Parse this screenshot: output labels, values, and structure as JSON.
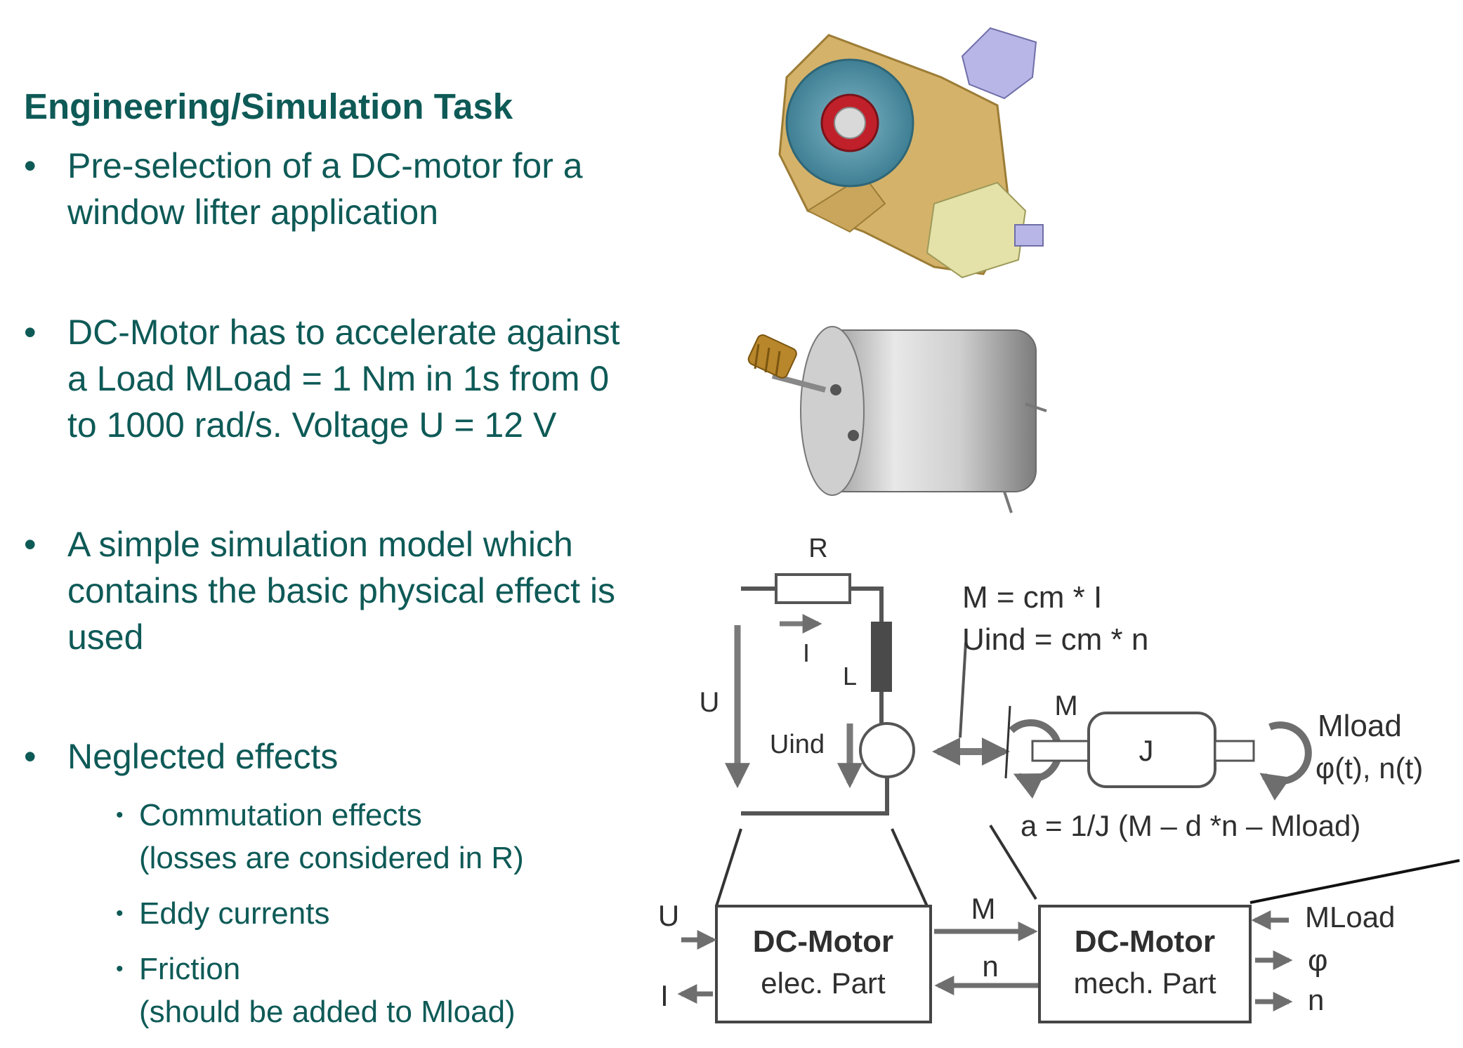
{
  "title": "Engineering/Simulation Task",
  "bullets": [
    {
      "lines": [
        "Pre-selection of a DC-motor for a",
        "window lifter application"
      ]
    },
    {
      "lines": [
        "DC-Motor has to accelerate against",
        "a Load MLoad = 1 Nm in 1s from 0",
        "to 1000 rad/s. Voltage U = 12 V"
      ]
    },
    {
      "lines": [
        "A simple simulation model which",
        "contains the basic physical effect is",
        "used"
      ]
    },
    {
      "lines": [
        "Neglected effects"
      ]
    }
  ],
  "bullet_symbol": "•",
  "subbullets": [
    {
      "lines": [
        "Commutation effects",
        "(losses are considered in R)"
      ]
    },
    {
      "lines": [
        "Eddy currents"
      ]
    },
    {
      "lines": [
        "Friction",
        "(should be added to Mload)"
      ]
    }
  ],
  "circuit": {
    "R": "R",
    "I": "I",
    "L": "L",
    "U": "U",
    "Uind": "Uind",
    "eq1": "M = cm * I",
    "eq2": "Uind = cm * n",
    "M": "M",
    "J": "J",
    "Mload": "Mload",
    "phi_n": "φ(t), n(t)",
    "accel": "a = 1/J (M – d *n – Mload)"
  },
  "blocks": {
    "elec_title": "DC-Motor",
    "elec_sub": "elec. Part",
    "mech_title": "DC-Motor",
    "mech_sub": "mech. Part",
    "in_U": "U",
    "out_I": "I",
    "sig_M": "M",
    "sig_n": "n",
    "in_MLoad": "MLoad",
    "out_phi": "φ",
    "out_n": "n"
  },
  "colors": {
    "text": "#0e5a57",
    "diagram_line": "#555555",
    "arrow": "#7a7a7a",
    "housing": "#d4b26a",
    "disc": "#4d8fa3",
    "connector": "#b7b6e6",
    "cylinder": "#c9c9c9"
  }
}
